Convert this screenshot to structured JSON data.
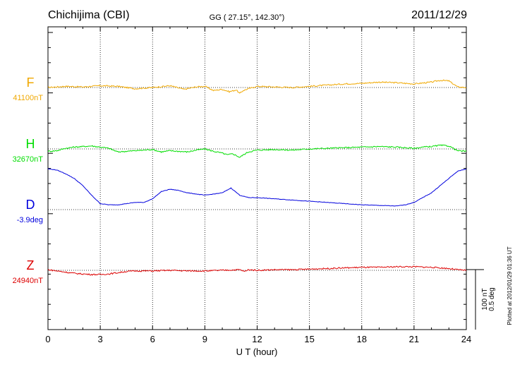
{
  "header": {
    "station": "Chichijima (CBI)",
    "coords": "GG ( 27.15°, 142.30°)",
    "date": "2011/12/29"
  },
  "footer": {
    "plotted": "Plotted at 2012/01/29 01:36 UT"
  },
  "scale": {
    "nt": "100 nT",
    "deg": "0.5 deg"
  },
  "chart_data": {
    "type": "line",
    "xlabel": "U T (hour)",
    "xlim": [
      0,
      24
    ],
    "xticks": [
      "0",
      "3",
      "6",
      "9",
      "12",
      "15",
      "18",
      "21",
      "24"
    ],
    "grid": true,
    "series": [
      {
        "name": "F",
        "baseline_label": "41100nT",
        "color": "#f0a800",
        "x": [
          0,
          1,
          2,
          3,
          4,
          5,
          6,
          7,
          7.8,
          8.5,
          9,
          9.5,
          10,
          10.4,
          10.8,
          11,
          11.2,
          11.5,
          12,
          13,
          14,
          15,
          16,
          17,
          18,
          19,
          20,
          21,
          22,
          22.5,
          23,
          23.5,
          24
        ],
        "y": [
          0,
          2,
          1,
          3,
          2,
          -2,
          0,
          3,
          -3,
          1,
          2,
          -5,
          -3,
          -7,
          -4,
          -10,
          -5,
          -2,
          2,
          1,
          0,
          2,
          4,
          6,
          7,
          9,
          8,
          6,
          9,
          12,
          11,
          1,
          0
        ]
      },
      {
        "name": "H",
        "baseline_label": "32670nT",
        "color": "#00dd00",
        "x": [
          0,
          0.5,
          1,
          1.5,
          2,
          2.5,
          3,
          3.5,
          4,
          5,
          6,
          6.5,
          7,
          7.5,
          8,
          8.5,
          9,
          9.5,
          10,
          10.3,
          10.6,
          11,
          11.2,
          11.5,
          12,
          13,
          14,
          15,
          16,
          17,
          18,
          19,
          20,
          21,
          21.5,
          22,
          22.5,
          23,
          23.5,
          24
        ],
        "y": [
          -4,
          -3,
          1,
          3,
          4,
          5,
          3,
          1,
          -5,
          -3,
          -1,
          -5,
          -3,
          -4,
          -5,
          -2,
          0,
          -4,
          -7,
          -10,
          -8,
          -14,
          -10,
          -5,
          -2,
          -1,
          -2,
          0,
          1,
          2,
          3,
          4,
          3,
          1,
          3,
          4,
          6,
          5,
          -3,
          -4
        ]
      },
      {
        "name": "D",
        "baseline_label": "-3.9deg",
        "color": "#0000dd",
        "x": [
          0,
          0.5,
          1,
          1.5,
          2,
          2.5,
          3,
          3.5,
          4,
          4.5,
          5,
          5.5,
          6,
          6.5,
          7,
          7.5,
          8,
          9,
          10,
          10.5,
          11,
          11.5,
          12,
          14,
          16,
          18,
          20,
          20.5,
          21,
          21.5,
          22,
          22.5,
          23,
          23.5,
          24
        ],
        "y": [
          0.34,
          0.33,
          0.3,
          0.26,
          0.2,
          0.12,
          0.05,
          0.04,
          0.04,
          0.05,
          0.06,
          0.06,
          0.09,
          0.15,
          0.17,
          0.16,
          0.14,
          0.12,
          0.14,
          0.18,
          0.12,
          0.1,
          0.1,
          0.08,
          0.06,
          0.04,
          0.03,
          0.04,
          0.06,
          0.1,
          0.14,
          0.2,
          0.26,
          0.32,
          0.34
        ]
      },
      {
        "name": "Z",
        "baseline_label": "24940nT",
        "color": "#dd0000",
        "x": [
          0,
          0.5,
          1,
          1.5,
          2,
          2.5,
          3,
          3.5,
          4,
          4.5,
          5,
          6,
          7,
          8,
          9,
          10,
          11,
          11.3,
          11.5,
          12,
          13,
          14,
          15,
          16,
          17,
          18,
          19,
          20,
          21,
          22,
          22.5,
          23,
          23.5,
          24
        ],
        "y": [
          1,
          -1,
          -3,
          -5,
          -6,
          -7,
          -7,
          -6,
          -4,
          -2,
          -1,
          -1,
          0,
          -1,
          -1,
          0,
          1,
          -2,
          1,
          0,
          1,
          1,
          2,
          3,
          4,
          5,
          5,
          6,
          6,
          5,
          4,
          3,
          1,
          0
        ]
      }
    ]
  }
}
